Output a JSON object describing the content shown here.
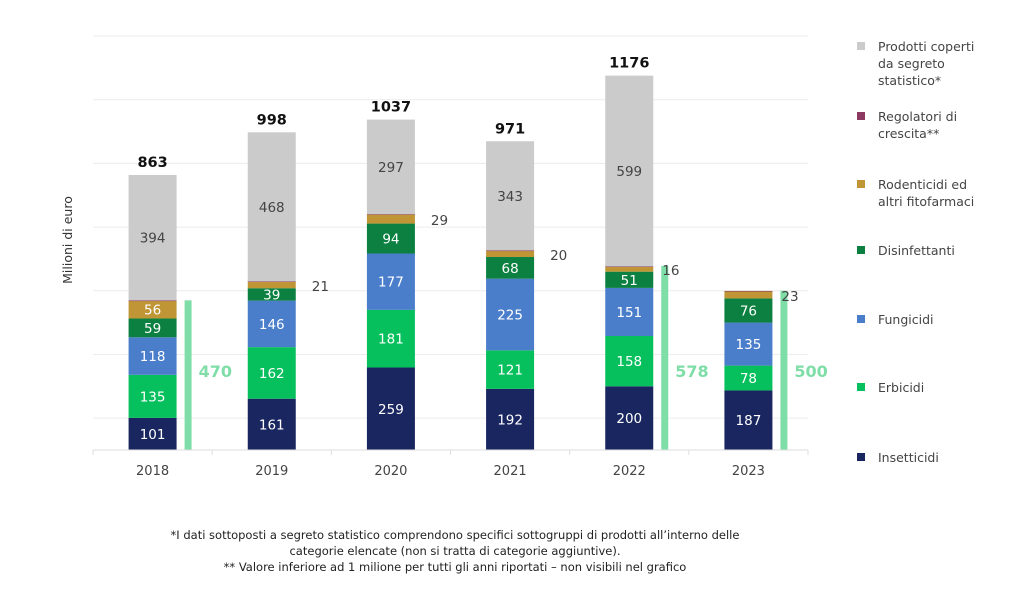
{
  "chart_data": {
    "type": "stacked-bar",
    "ylabel": "Milioni di euro",
    "categories": [
      "2018",
      "2019",
      "2020",
      "2021",
      "2022",
      "2023"
    ],
    "ylim": [
      0,
      1300
    ],
    "gridlines": [
      100,
      300,
      500,
      700,
      900,
      1100,
      1300
    ],
    "grid": true,
    "legend_position": "right",
    "series": [
      {
        "name": "Insetticidi",
        "color": "#1a2660",
        "values": [
          101,
          161,
          259,
          192,
          200,
          187
        ],
        "label_mode": "inside"
      },
      {
        "name": "Erbicidi",
        "color": "#06bf5d",
        "values": [
          135,
          162,
          181,
          121,
          158,
          78
        ],
        "label_mode": "inside"
      },
      {
        "name": "Fungicidi",
        "color": "#4a7ecb",
        "values": [
          118,
          146,
          177,
          225,
          151,
          135
        ],
        "label_mode": "inside"
      },
      {
        "name": "Disinfettanti",
        "color": "#0b8040",
        "values": [
          59,
          39,
          94,
          68,
          51,
          76
        ],
        "label_mode": "inside"
      },
      {
        "name": "Rodenticidi ed altri fitofarmaci",
        "color": "#c09535",
        "values": [
          56,
          21,
          29,
          20,
          16,
          23
        ],
        "label_mode": "inside-first-else-side"
      },
      {
        "name": "Regolatori di crescita**",
        "color": "#8c3a62",
        "values": [
          0.5,
          0.5,
          0.5,
          0.5,
          0.5,
          0.5
        ],
        "label_mode": "none"
      },
      {
        "name": "Prodotti coperti da segreto statistico*",
        "color": "#cbcbcb",
        "values": [
          394,
          468,
          297,
          343,
          599,
          null
        ],
        "label_mode": "inside-dark"
      }
    ],
    "totals": [
      "863",
      "998",
      "1037",
      "971",
      "1176",
      null
    ],
    "highlight": {
      "color": "#7fdea8",
      "values": [
        470,
        null,
        null,
        null,
        578,
        500
      ],
      "labels": [
        "470",
        null,
        null,
        null,
        "578",
        "500"
      ]
    }
  },
  "legend": [
    {
      "label": "Prodotti coperti da segreto statistico*",
      "color": "#cbcbcb"
    },
    {
      "label": "Regolatori di crescita**",
      "color": "#8c3a62"
    },
    {
      "label": "Rodenticidi ed altri fitofarmaci",
      "color": "#c09535"
    },
    {
      "label": "Disinfettanti",
      "color": "#0b8040"
    },
    {
      "label": "Fungicidi",
      "color": "#4a7ecb"
    },
    {
      "label": "Erbicidi",
      "color": "#06bf5d"
    },
    {
      "label": "Insetticidi",
      "color": "#1a2660"
    }
  ],
  "footnote": {
    "line1": "*I dati sottoposti a segreto statistico comprendono specifici sottogruppi di prodotti all’interno delle",
    "line2": "categorie elencate  (non si tratta di categorie aggiuntive).",
    "line3": "** Valore inferiore ad 1 milione per tutti gli anni riportati – non visibili nel grafico"
  }
}
